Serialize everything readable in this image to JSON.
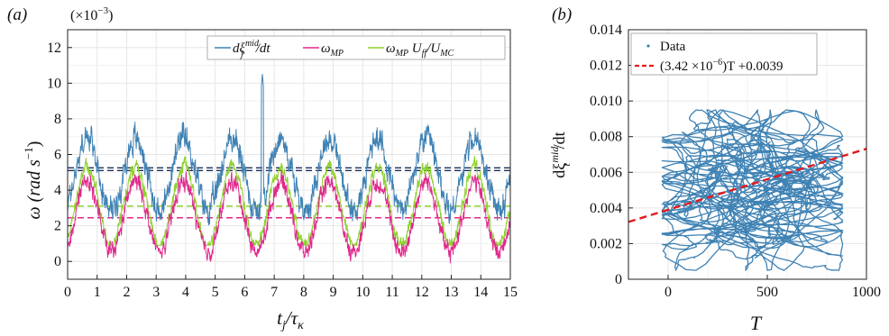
{
  "colors": {
    "blue": "#3f82b4",
    "magenta": "#e0288c",
    "green": "#8ed12f",
    "red_dashed": "#e41a1c",
    "navy_dashed": "#1c2f5a",
    "grid": "#e6e6e6",
    "axis": "#222222"
  },
  "chart_data": [
    {
      "panel_label": "(a)",
      "type": "line",
      "multiplier_label": "(×10",
      "multiplier_exp": "−3",
      "multiplier_close": ")",
      "xlabel_main": "t",
      "xlabel_sub": "j",
      "xlabel_sep": "/τ",
      "xlabel_sub2": "κ",
      "ylabel": "ω (rad s",
      "ylabel_exp": "−1",
      "ylabel_close": ")",
      "xlim": [
        0,
        15
      ],
      "ylim": [
        -1,
        13
      ],
      "xticks": [
        "0",
        "1",
        "2",
        "3",
        "4",
        "5",
        "6",
        "7",
        "8",
        "9",
        "10",
        "11",
        "12",
        "13",
        "14",
        "15"
      ],
      "yticks": [
        "0",
        "2",
        "4",
        "6",
        "8",
        "10",
        "12"
      ],
      "grid": true,
      "legend_position": "top-right",
      "legend": [
        {
          "text": "dξ",
          "sup": "mid",
          "sub": "j",
          "tail": "/dt"
        },
        {
          "text": "ω",
          "sub": "MP",
          "tail": ""
        },
        {
          "text": "ω",
          "sub": "MP",
          "tail": " U",
          "sub2": "ff",
          "tail2": "/U",
          "sub3": "MC"
        }
      ],
      "period": 1.64,
      "series": [
        {
          "color_key": "blue",
          "mean": 4.9,
          "amplitude": 2.0,
          "noise": 0.9,
          "min": 1.8,
          "peak_x": 6.6,
          "peak_y": 10.5
        },
        {
          "color_key": "magenta",
          "mean": 2.5,
          "amplitude": 2.0,
          "noise": 0.6,
          "min": 0.0
        },
        {
          "color_key": "green",
          "mean": 3.1,
          "amplitude": 2.2,
          "noise": 0.5,
          "min": 1.2
        }
      ],
      "hlines": [
        {
          "y": 5.25,
          "color_key": "navy_dashed"
        },
        {
          "y": 5.1,
          "color_key": "navy_dashed"
        },
        {
          "y": 3.1,
          "color_key": "green"
        },
        {
          "y": 2.45,
          "color_key": "magenta"
        }
      ]
    },
    {
      "panel_label": "(b)",
      "type": "scatter",
      "xlabel": "T",
      "ylabel_main": "dξ",
      "ylabel_sup": "mid",
      "ylabel_sub": "t",
      "ylabel_tail": "/dt",
      "xlim": [
        -200,
        1000
      ],
      "ylim": [
        0,
        0.014
      ],
      "xticks": [
        "0",
        "500",
        "1000"
      ],
      "yticks": [
        "0",
        "0.002",
        "0.004",
        "0.006",
        "0.008",
        "0.010",
        "0.012",
        "0.014"
      ],
      "grid": true,
      "legend_position": "top-left",
      "legend": [
        {
          "text": "Data"
        },
        {
          "text": "(3.42 ×10",
          "sup": "−6",
          "tail": ")T +0.0039"
        }
      ],
      "fit": {
        "slope": 3.42e-06,
        "intercept": 0.0039
      },
      "cloud": {
        "x_center": 420,
        "x_spread": 300,
        "y_center": 0.0055,
        "y_spread": 0.0018,
        "x_min": -30,
        "x_max": 880,
        "y_min": 0.0005,
        "y_max": 0.0095
      }
    }
  ]
}
